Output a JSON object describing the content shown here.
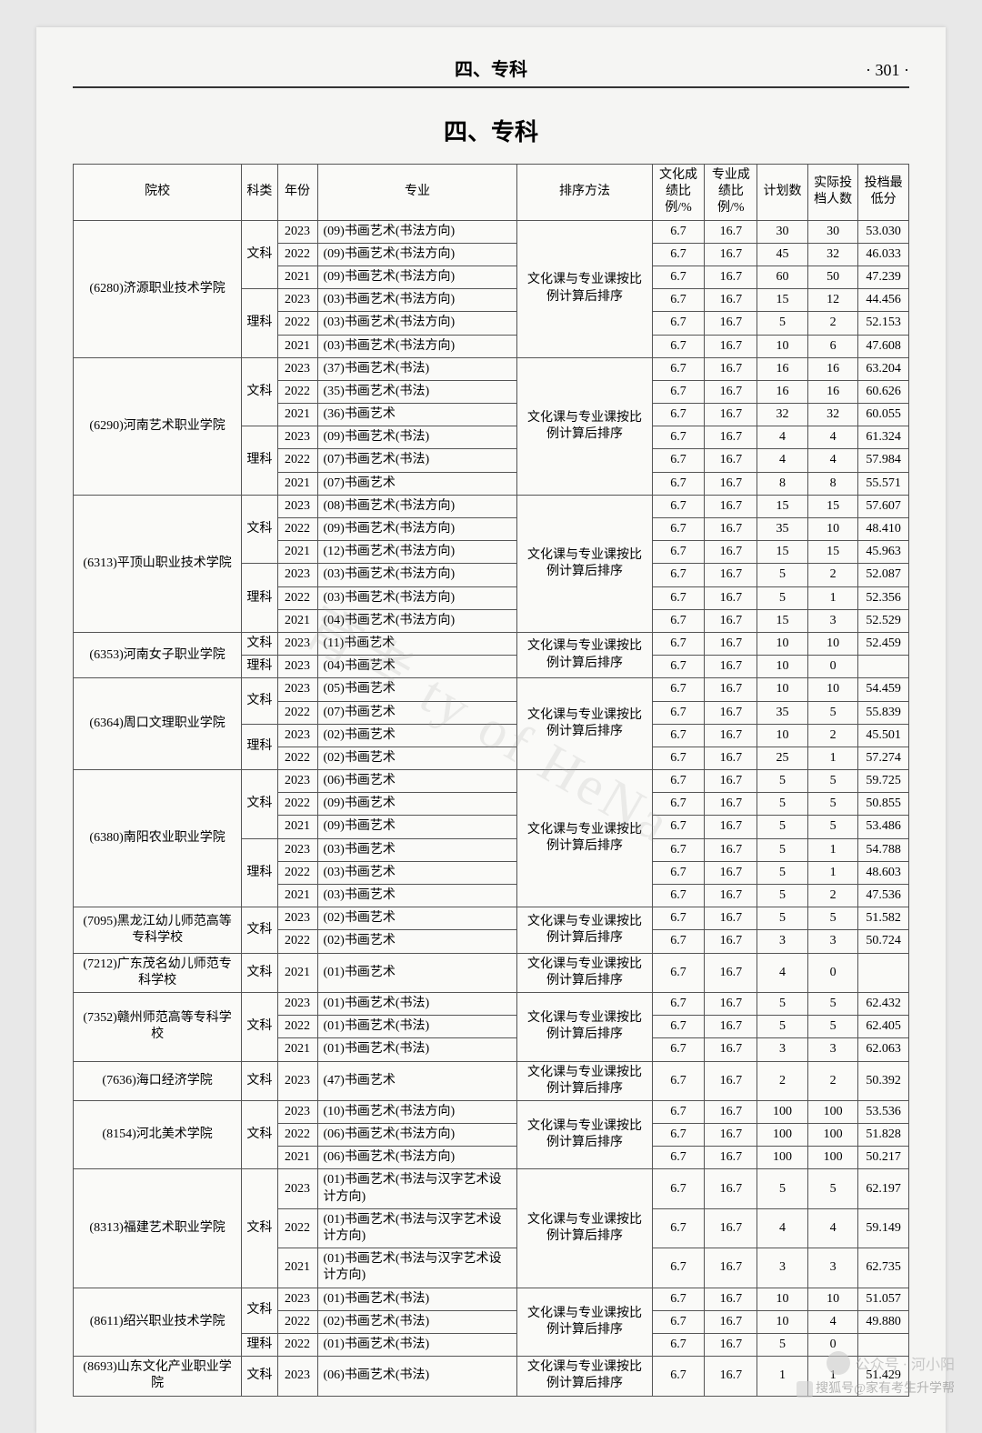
{
  "header": {
    "title": "四、专科",
    "page_num": "· 301 ·"
  },
  "section_title": "四、专科",
  "watermark": "育考 ty of HeNa",
  "footer": {
    "wechat": "公众号 · 河小阳",
    "sohu": "搜狐号@家有考生升学帮"
  },
  "columns": [
    "院校",
    "科类",
    "年份",
    "专业",
    "排序方法",
    "文化成绩比例/%",
    "专业成绩比例/%",
    "计划数",
    "实际投档人数",
    "投档最低分"
  ],
  "schools": [
    {
      "name": "(6280)济源职业技术学院",
      "sort": "文化课与专业课按比例计算后排序",
      "groups": [
        {
          "cat": "文科",
          "rows": [
            {
              "y": "2023",
              "m": "(09)书画艺术(书法方向)",
              "c": "6.7",
              "z": "16.7",
              "p": "30",
              "a": "30",
              "s": "53.030"
            },
            {
              "y": "2022",
              "m": "(09)书画艺术(书法方向)",
              "c": "6.7",
              "z": "16.7",
              "p": "45",
              "a": "32",
              "s": "46.033"
            },
            {
              "y": "2021",
              "m": "(09)书画艺术(书法方向)",
              "c": "6.7",
              "z": "16.7",
              "p": "60",
              "a": "50",
              "s": "47.239"
            }
          ]
        },
        {
          "cat": "理科",
          "rows": [
            {
              "y": "2023",
              "m": "(03)书画艺术(书法方向)",
              "c": "6.7",
              "z": "16.7",
              "p": "15",
              "a": "12",
              "s": "44.456"
            },
            {
              "y": "2022",
              "m": "(03)书画艺术(书法方向)",
              "c": "6.7",
              "z": "16.7",
              "p": "5",
              "a": "2",
              "s": "52.153"
            },
            {
              "y": "2021",
              "m": "(03)书画艺术(书法方向)",
              "c": "6.7",
              "z": "16.7",
              "p": "10",
              "a": "6",
              "s": "47.608"
            }
          ]
        }
      ]
    },
    {
      "name": "(6290)河南艺术职业学院",
      "sort": "文化课与专业课按比例计算后排序",
      "groups": [
        {
          "cat": "文科",
          "rows": [
            {
              "y": "2023",
              "m": "(37)书画艺术(书法)",
              "c": "6.7",
              "z": "16.7",
              "p": "16",
              "a": "16",
              "s": "63.204"
            },
            {
              "y": "2022",
              "m": "(35)书画艺术(书法)",
              "c": "6.7",
              "z": "16.7",
              "p": "16",
              "a": "16",
              "s": "60.626"
            },
            {
              "y": "2021",
              "m": "(36)书画艺术",
              "c": "6.7",
              "z": "16.7",
              "p": "32",
              "a": "32",
              "s": "60.055"
            }
          ]
        },
        {
          "cat": "理科",
          "rows": [
            {
              "y": "2023",
              "m": "(09)书画艺术(书法)",
              "c": "6.7",
              "z": "16.7",
              "p": "4",
              "a": "4",
              "s": "61.324"
            },
            {
              "y": "2022",
              "m": "(07)书画艺术(书法)",
              "c": "6.7",
              "z": "16.7",
              "p": "4",
              "a": "4",
              "s": "57.984"
            },
            {
              "y": "2021",
              "m": "(07)书画艺术",
              "c": "6.7",
              "z": "16.7",
              "p": "8",
              "a": "8",
              "s": "55.571"
            }
          ]
        }
      ]
    },
    {
      "name": "(6313)平顶山职业技术学院",
      "sort": "文化课与专业课按比例计算后排序",
      "groups": [
        {
          "cat": "文科",
          "rows": [
            {
              "y": "2023",
              "m": "(08)书画艺术(书法方向)",
              "c": "6.7",
              "z": "16.7",
              "p": "15",
              "a": "15",
              "s": "57.607"
            },
            {
              "y": "2022",
              "m": "(09)书画艺术(书法方向)",
              "c": "6.7",
              "z": "16.7",
              "p": "35",
              "a": "10",
              "s": "48.410"
            },
            {
              "y": "2021",
              "m": "(12)书画艺术(书法方向)",
              "c": "6.7",
              "z": "16.7",
              "p": "15",
              "a": "15",
              "s": "45.963"
            }
          ]
        },
        {
          "cat": "理科",
          "rows": [
            {
              "y": "2023",
              "m": "(03)书画艺术(书法方向)",
              "c": "6.7",
              "z": "16.7",
              "p": "5",
              "a": "2",
              "s": "52.087"
            },
            {
              "y": "2022",
              "m": "(03)书画艺术(书法方向)",
              "c": "6.7",
              "z": "16.7",
              "p": "5",
              "a": "1",
              "s": "52.356"
            },
            {
              "y": "2021",
              "m": "(04)书画艺术(书法方向)",
              "c": "6.7",
              "z": "16.7",
              "p": "15",
              "a": "3",
              "s": "52.529"
            }
          ]
        }
      ]
    },
    {
      "name": "(6353)河南女子职业学院",
      "sort": "文化课与专业课按比例计算后排序",
      "groups": [
        {
          "cat": "文科",
          "rows": [
            {
              "y": "2023",
              "m": "(11)书画艺术",
              "c": "6.7",
              "z": "16.7",
              "p": "10",
              "a": "10",
              "s": "52.459"
            }
          ]
        },
        {
          "cat": "理科",
          "rows": [
            {
              "y": "2023",
              "m": "(04)书画艺术",
              "c": "6.7",
              "z": "16.7",
              "p": "10",
              "a": "0",
              "s": ""
            }
          ]
        }
      ]
    },
    {
      "name": "(6364)周口文理职业学院",
      "sort": "文化课与专业课按比例计算后排序",
      "groups": [
        {
          "cat": "文科",
          "rows": [
            {
              "y": "2023",
              "m": "(05)书画艺术",
              "c": "6.7",
              "z": "16.7",
              "p": "10",
              "a": "10",
              "s": "54.459"
            },
            {
              "y": "2022",
              "m": "(07)书画艺术",
              "c": "6.7",
              "z": "16.7",
              "p": "35",
              "a": "5",
              "s": "55.839"
            }
          ]
        },
        {
          "cat": "理科",
          "rows": [
            {
              "y": "2023",
              "m": "(02)书画艺术",
              "c": "6.7",
              "z": "16.7",
              "p": "10",
              "a": "2",
              "s": "45.501"
            },
            {
              "y": "2022",
              "m": "(02)书画艺术",
              "c": "6.7",
              "z": "16.7",
              "p": "25",
              "a": "1",
              "s": "57.274"
            }
          ]
        }
      ]
    },
    {
      "name": "(6380)南阳农业职业学院",
      "sort": "文化课与专业课按比例计算后排序",
      "groups": [
        {
          "cat": "文科",
          "rows": [
            {
              "y": "2023",
              "m": "(06)书画艺术",
              "c": "6.7",
              "z": "16.7",
              "p": "5",
              "a": "5",
              "s": "59.725"
            },
            {
              "y": "2022",
              "m": "(09)书画艺术",
              "c": "6.7",
              "z": "16.7",
              "p": "5",
              "a": "5",
              "s": "50.855"
            },
            {
              "y": "2021",
              "m": "(09)书画艺术",
              "c": "6.7",
              "z": "16.7",
              "p": "5",
              "a": "5",
              "s": "53.486"
            }
          ]
        },
        {
          "cat": "理科",
          "rows": [
            {
              "y": "2023",
              "m": "(03)书画艺术",
              "c": "6.7",
              "z": "16.7",
              "p": "5",
              "a": "1",
              "s": "54.788"
            },
            {
              "y": "2022",
              "m": "(03)书画艺术",
              "c": "6.7",
              "z": "16.7",
              "p": "5",
              "a": "1",
              "s": "48.603"
            },
            {
              "y": "2021",
              "m": "(03)书画艺术",
              "c": "6.7",
              "z": "16.7",
              "p": "5",
              "a": "2",
              "s": "47.536"
            }
          ]
        }
      ]
    },
    {
      "name": "(7095)黑龙江幼儿师范高等专科学校",
      "sort": "文化课与专业课按比例计算后排序",
      "groups": [
        {
          "cat": "文科",
          "rows": [
            {
              "y": "2023",
              "m": "(02)书画艺术",
              "c": "6.7",
              "z": "16.7",
              "p": "5",
              "a": "5",
              "s": "51.582"
            },
            {
              "y": "2022",
              "m": "(02)书画艺术",
              "c": "6.7",
              "z": "16.7",
              "p": "3",
              "a": "3",
              "s": "50.724"
            }
          ]
        }
      ]
    },
    {
      "name": "(7212)广东茂名幼儿师范专科学校",
      "sort": "文化课与专业课按比例计算后排序",
      "groups": [
        {
          "cat": "文科",
          "rows": [
            {
              "y": "2021",
              "m": "(01)书画艺术",
              "c": "6.7",
              "z": "16.7",
              "p": "4",
              "a": "0",
              "s": ""
            }
          ]
        }
      ]
    },
    {
      "name": "(7352)赣州师范高等专科学校",
      "sort": "文化课与专业课按比例计算后排序",
      "groups": [
        {
          "cat": "文科",
          "rows": [
            {
              "y": "2023",
              "m": "(01)书画艺术(书法)",
              "c": "6.7",
              "z": "16.7",
              "p": "5",
              "a": "5",
              "s": "62.432"
            },
            {
              "y": "2022",
              "m": "(01)书画艺术(书法)",
              "c": "6.7",
              "z": "16.7",
              "p": "5",
              "a": "5",
              "s": "62.405"
            },
            {
              "y": "2021",
              "m": "(01)书画艺术(书法)",
              "c": "6.7",
              "z": "16.7",
              "p": "3",
              "a": "3",
              "s": "62.063"
            }
          ]
        }
      ]
    },
    {
      "name": "(7636)海口经济学院",
      "sort": "文化课与专业课按比例计算后排序",
      "groups": [
        {
          "cat": "文科",
          "rows": [
            {
              "y": "2023",
              "m": "(47)书画艺术",
              "c": "6.7",
              "z": "16.7",
              "p": "2",
              "a": "2",
              "s": "50.392"
            }
          ]
        }
      ]
    },
    {
      "name": "(8154)河北美术学院",
      "sort": "文化课与专业课按比例计算后排序",
      "groups": [
        {
          "cat": "文科",
          "rows": [
            {
              "y": "2023",
              "m": "(10)书画艺术(书法方向)",
              "c": "6.7",
              "z": "16.7",
              "p": "100",
              "a": "100",
              "s": "53.536"
            },
            {
              "y": "2022",
              "m": "(06)书画艺术(书法方向)",
              "c": "6.7",
              "z": "16.7",
              "p": "100",
              "a": "100",
              "s": "51.828"
            },
            {
              "y": "2021",
              "m": "(06)书画艺术(书法方向)",
              "c": "6.7",
              "z": "16.7",
              "p": "100",
              "a": "100",
              "s": "50.217"
            }
          ]
        }
      ]
    },
    {
      "name": "(8313)福建艺术职业学院",
      "sort": "文化课与专业课按比例计算后排序",
      "groups": [
        {
          "cat": "文科",
          "rows": [
            {
              "y": "2023",
              "m": "(01)书画艺术(书法与汉字艺术设计方向)",
              "c": "6.7",
              "z": "16.7",
              "p": "5",
              "a": "5",
              "s": "62.197"
            },
            {
              "y": "2022",
              "m": "(01)书画艺术(书法与汉字艺术设计方向)",
              "c": "6.7",
              "z": "16.7",
              "p": "4",
              "a": "4",
              "s": "59.149"
            },
            {
              "y": "2021",
              "m": "(01)书画艺术(书法与汉字艺术设计方向)",
              "c": "6.7",
              "z": "16.7",
              "p": "3",
              "a": "3",
              "s": "62.735"
            }
          ]
        }
      ]
    },
    {
      "name": "(8611)绍兴职业技术学院",
      "sort": "文化课与专业课按比例计算后排序",
      "groups": [
        {
          "cat": "文科",
          "rows": [
            {
              "y": "2023",
              "m": "(01)书画艺术(书法)",
              "c": "6.7",
              "z": "16.7",
              "p": "10",
              "a": "10",
              "s": "51.057"
            },
            {
              "y": "2022",
              "m": "(02)书画艺术(书法)",
              "c": "6.7",
              "z": "16.7",
              "p": "10",
              "a": "4",
              "s": "49.880"
            }
          ]
        },
        {
          "cat": "理科",
          "rows": [
            {
              "y": "2022",
              "m": "(01)书画艺术(书法)",
              "c": "6.7",
              "z": "16.7",
              "p": "5",
              "a": "0",
              "s": ""
            }
          ]
        }
      ]
    },
    {
      "name": "(8693)山东文化产业职业学院",
      "sort": "文化课与专业课按比例计算后排序",
      "groups": [
        {
          "cat": "文科",
          "rows": [
            {
              "y": "2023",
              "m": "(06)书画艺术(书法)",
              "c": "6.7",
              "z": "16.7",
              "p": "1",
              "a": "1",
              "s": "51.429"
            }
          ]
        }
      ]
    }
  ]
}
